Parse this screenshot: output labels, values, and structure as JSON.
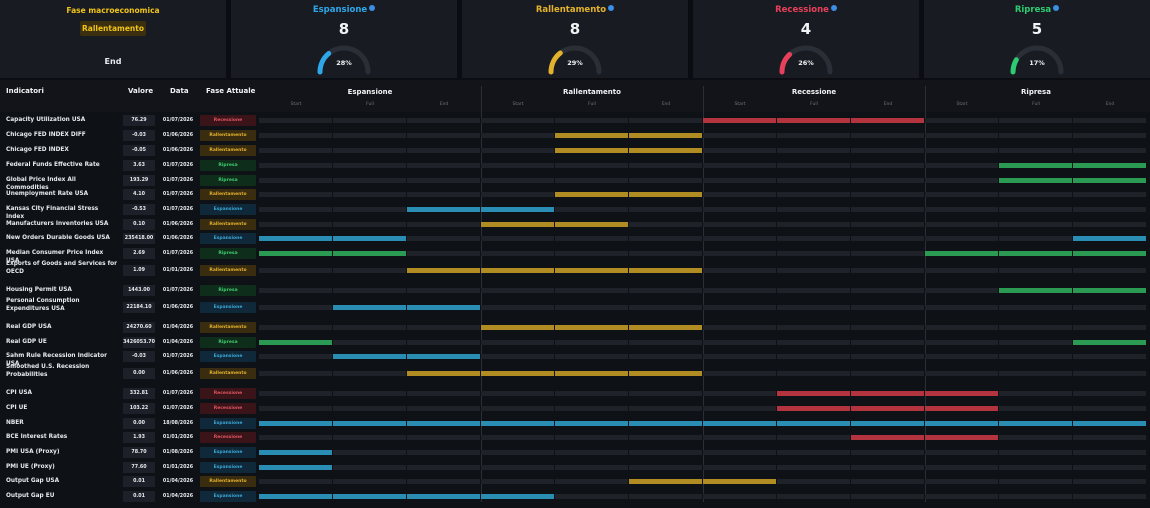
{
  "phase_card": {
    "title": "Fase macroeconomica",
    "current": "Rallentamento",
    "end_label": "End"
  },
  "phase_cards": [
    {
      "name": "Espansione",
      "count": "8",
      "pct": "28%",
      "pct_value": 0.28,
      "color": "#2ea7e8"
    },
    {
      "name": "Rallentamento",
      "count": "8",
      "pct": "29%",
      "pct_value": 0.29,
      "color": "#e3b22c"
    },
    {
      "name": "Recessione",
      "count": "4",
      "pct": "26%",
      "pct_value": 0.26,
      "color": "#e8405a"
    },
    {
      "name": "Ripresa",
      "count": "5",
      "pct": "17%",
      "pct_value": 0.17,
      "color": "#2ecc71"
    }
  ],
  "table": {
    "headers": {
      "indicator": "Indicatori",
      "value": "Valore",
      "date": "Data",
      "phase": "Fase Attuale"
    },
    "sections": [
      "Espansione",
      "Rallentamento",
      "Recessione",
      "Ripresa"
    ],
    "subcols": [
      "Start",
      "Full",
      "End"
    ],
    "rows": [
      {
        "name": "Capacity Utilization USA",
        "value": "76.29",
        "date": "01/07/2026",
        "phase": "Recessione",
        "cells": [
          0,
          0,
          0,
          0,
          0,
          0,
          3,
          3,
          3,
          0,
          0,
          0
        ]
      },
      {
        "name": "Chicago FED INDEX DIFF",
        "value": "-0.03",
        "date": "01/06/2026",
        "phase": "Rallentamento",
        "cells": [
          0,
          0,
          0,
          0,
          2,
          2,
          0,
          0,
          0,
          0,
          0,
          0
        ]
      },
      {
        "name": "Chicago FED INDEX",
        "value": "-0.05",
        "date": "01/06/2026",
        "phase": "Rallentamento",
        "cells": [
          0,
          0,
          0,
          0,
          2,
          2,
          0,
          0,
          0,
          0,
          0,
          0
        ]
      },
      {
        "name": "Federal Funds Effective Rate",
        "value": "3.63",
        "date": "01/07/2026",
        "phase": "Ripresa",
        "cells": [
          0,
          0,
          0,
          0,
          0,
          0,
          0,
          0,
          0,
          0,
          4,
          4
        ]
      },
      {
        "name": "Global Price Index All Commodities",
        "value": "193.29",
        "date": "01/07/2026",
        "phase": "Ripresa",
        "cells": [
          0,
          0,
          0,
          0,
          0,
          0,
          0,
          0,
          0,
          0,
          4,
          4
        ]
      },
      {
        "name": "Unemployment Rate USA",
        "value": "4.10",
        "date": "01/07/2026",
        "phase": "Rallentamento",
        "cells": [
          0,
          0,
          0,
          0,
          2,
          2,
          0,
          0,
          0,
          0,
          0,
          0
        ]
      },
      {
        "name": "Kansas City Financial Stress Index",
        "value": "-0.53",
        "date": "01/07/2026",
        "phase": "Espansione",
        "cells": [
          0,
          0,
          1,
          1,
          0,
          0,
          0,
          0,
          0,
          0,
          0,
          0
        ]
      },
      {
        "name": "Manufacturers Inventories USA",
        "value": "0.10",
        "date": "01/06/2026",
        "phase": "Rallentamento",
        "cells": [
          0,
          0,
          0,
          2,
          2,
          0,
          0,
          0,
          0,
          0,
          0,
          0
        ]
      },
      {
        "name": "New Orders Durable Goods USA",
        "value": "235418.00",
        "date": "01/06/2026",
        "phase": "Espansione",
        "cells": [
          1,
          1,
          0,
          0,
          0,
          0,
          0,
          0,
          0,
          0,
          0,
          1
        ]
      },
      {
        "name": "Median Consumer Price Index USA",
        "value": "2.69",
        "date": "01/07/2026",
        "phase": "Ripresa",
        "cells": [
          4,
          4,
          0,
          0,
          0,
          0,
          0,
          0,
          0,
          4,
          4,
          4
        ]
      },
      {
        "name": "Exports of Goods and Services for OECD",
        "value": "1.09",
        "date": "01/01/2026",
        "phase": "Rallentamento",
        "cells": [
          0,
          0,
          2,
          2,
          2,
          2,
          0,
          0,
          0,
          0,
          0,
          0
        ]
      },
      {
        "name": "Housing Permit USA",
        "value": "1443.00",
        "date": "01/07/2026",
        "phase": "Ripresa",
        "cells": [
          0,
          0,
          0,
          0,
          0,
          0,
          0,
          0,
          0,
          0,
          4,
          4
        ]
      },
      {
        "name": "Personal Consumption Expenditures USA",
        "value": "22184.10",
        "date": "01/06/2026",
        "phase": "Espansione",
        "cells": [
          0,
          1,
          1,
          0,
          0,
          0,
          0,
          0,
          0,
          0,
          0,
          0
        ]
      },
      {
        "name": "Real GDP USA",
        "value": "24270.60",
        "date": "01/04/2026",
        "phase": "Rallentamento",
        "cells": [
          0,
          0,
          0,
          2,
          2,
          2,
          0,
          0,
          0,
          0,
          0,
          0
        ]
      },
      {
        "name": "Real GDP UE",
        "value": "3426053.70",
        "date": "01/04/2026",
        "phase": "Ripresa",
        "cells": [
          4,
          0,
          0,
          0,
          0,
          0,
          0,
          0,
          0,
          0,
          0,
          4
        ]
      },
      {
        "name": "Sahm Rule Recession Indicator USA",
        "value": "-0.03",
        "date": "01/07/2026",
        "phase": "Espansione",
        "cells": [
          0,
          1,
          1,
          0,
          0,
          0,
          0,
          0,
          0,
          0,
          0,
          0
        ]
      },
      {
        "name": "Smoothed U.S. Recession Probabilities",
        "value": "0.00",
        "date": "01/06/2026",
        "phase": "Rallentamento",
        "cells": [
          0,
          0,
          2,
          2,
          2,
          2,
          0,
          0,
          0,
          0,
          0,
          0
        ]
      },
      {
        "name": "CPI USA",
        "value": "332.81",
        "date": "01/07/2026",
        "phase": "Recessione",
        "cells": [
          0,
          0,
          0,
          0,
          0,
          0,
          0,
          3,
          3,
          3,
          0,
          0
        ]
      },
      {
        "name": "CPI UE",
        "value": "103.22",
        "date": "01/07/2026",
        "phase": "Recessione",
        "cells": [
          0,
          0,
          0,
          0,
          0,
          0,
          0,
          3,
          3,
          3,
          0,
          0
        ]
      },
      {
        "name": "NBER",
        "value": "0.00",
        "date": "18/08/2026",
        "phase": "Espansione",
        "cells": [
          1,
          1,
          1,
          1,
          1,
          1,
          1,
          1,
          1,
          1,
          1,
          1
        ]
      },
      {
        "name": "BCE Interest Rates",
        "value": "1.93",
        "date": "01/01/2026",
        "phase": "Recessione",
        "cells": [
          0,
          0,
          0,
          0,
          0,
          0,
          0,
          0,
          3,
          3,
          0,
          0
        ]
      },
      {
        "name": "PMI USA (Proxy)",
        "value": "78.70",
        "date": "01/08/2026",
        "phase": "Espansione",
        "cells": [
          1,
          0,
          0,
          0,
          0,
          0,
          0,
          0,
          0,
          0,
          0,
          0
        ]
      },
      {
        "name": "PMI UE (Proxy)",
        "value": "77.60",
        "date": "01/01/2026",
        "phase": "Espansione",
        "cells": [
          1,
          0,
          0,
          0,
          0,
          0,
          0,
          0,
          0,
          0,
          0,
          0
        ]
      },
      {
        "name": "Output Gap USA",
        "value": "0.01",
        "date": "01/04/2026",
        "phase": "Rallentamento",
        "cells": [
          0,
          0,
          0,
          0,
          0,
          2,
          2,
          0,
          0,
          0,
          0,
          0
        ]
      },
      {
        "name": "Output Gap EU",
        "value": "0.01",
        "date": "01/04/2026",
        "phase": "Espansione",
        "cells": [
          1,
          1,
          1,
          1,
          0,
          0,
          0,
          0,
          0,
          0,
          0,
          0
        ]
      }
    ]
  }
}
